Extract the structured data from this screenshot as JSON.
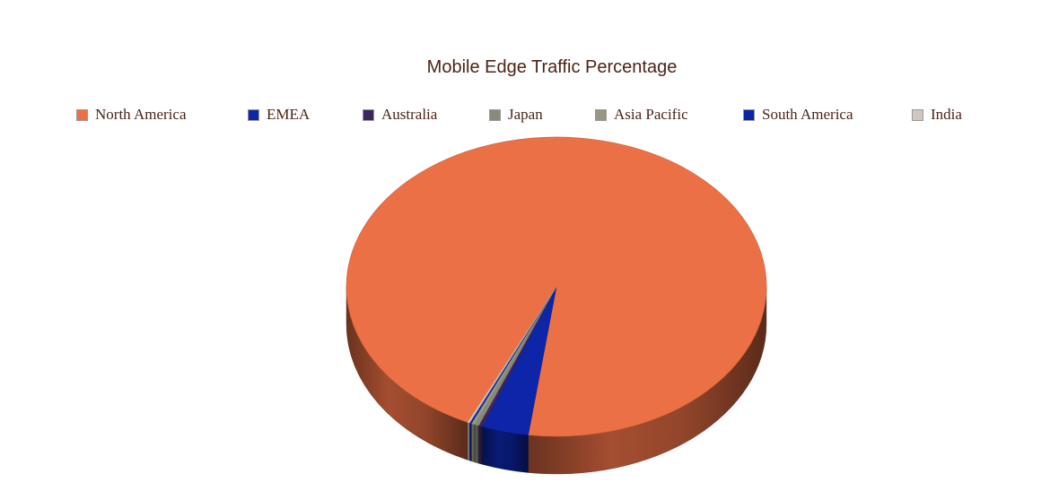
{
  "chart_data": {
    "type": "pie",
    "title": "Mobile Edge Traffic Percentage",
    "legend_position": "top",
    "three_d": true,
    "series": [
      {
        "categories": [
          "North America",
          "EMEA",
          "Australia",
          "Japan",
          "Asia Pacific",
          "South America",
          "India"
        ],
        "values": [
          95.2,
          3.6,
          0.3,
          0.3,
          0.3,
          0.15,
          0.15
        ],
        "unit": "%"
      }
    ],
    "colors": [
      "#ec7045",
      "#0d25a8",
      "#3b2660",
      "#8a8a7c",
      "#989882",
      "#0d25a8",
      "#d0c8c0"
    ]
  }
}
